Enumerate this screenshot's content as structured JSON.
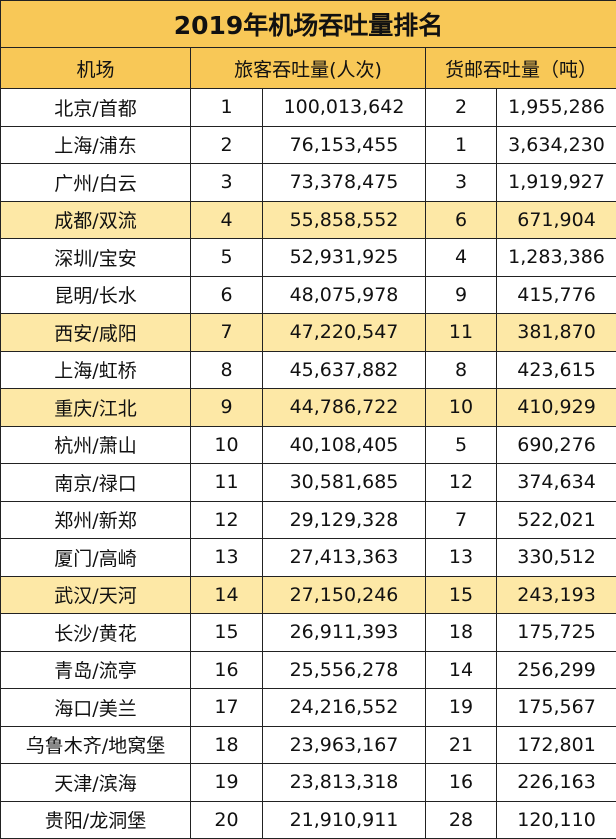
{
  "title": "2019年机场吞吐量排名",
  "headers": {
    "airport": "机场",
    "passenger": "旅客吞吐量(人次)",
    "cargo": "货邮吞吐量（吨）"
  },
  "rows": [
    {
      "airport": "北京/首都",
      "p_rank": "1",
      "p_value": "100,013,642",
      "c_rank": "2",
      "c_value": "1,955,286",
      "highlight": false
    },
    {
      "airport": "上海/浦东",
      "p_rank": "2",
      "p_value": "76,153,455",
      "c_rank": "1",
      "c_value": "3,634,230",
      "highlight": false
    },
    {
      "airport": "广州/白云",
      "p_rank": "3",
      "p_value": "73,378,475",
      "c_rank": "3",
      "c_value": "1,919,927",
      "highlight": false
    },
    {
      "airport": "成都/双流",
      "p_rank": "4",
      "p_value": "55,858,552",
      "c_rank": "6",
      "c_value": "671,904",
      "highlight": true
    },
    {
      "airport": "深圳/宝安",
      "p_rank": "5",
      "p_value": "52,931,925",
      "c_rank": "4",
      "c_value": "1,283,386",
      "highlight": false
    },
    {
      "airport": "昆明/长水",
      "p_rank": "6",
      "p_value": "48,075,978",
      "c_rank": "9",
      "c_value": "415,776",
      "highlight": false
    },
    {
      "airport": "西安/咸阳",
      "p_rank": "7",
      "p_value": "47,220,547",
      "c_rank": "11",
      "c_value": "381,870",
      "highlight": true
    },
    {
      "airport": "上海/虹桥",
      "p_rank": "8",
      "p_value": "45,637,882",
      "c_rank": "8",
      "c_value": "423,615",
      "highlight": false
    },
    {
      "airport": "重庆/江北",
      "p_rank": "9",
      "p_value": "44,786,722",
      "c_rank": "10",
      "c_value": "410,929",
      "highlight": true
    },
    {
      "airport": "杭州/萧山",
      "p_rank": "10",
      "p_value": "40,108,405",
      "c_rank": "5",
      "c_value": "690,276",
      "highlight": false
    },
    {
      "airport": "南京/禄口",
      "p_rank": "11",
      "p_value": "30,581,685",
      "c_rank": "12",
      "c_value": "374,634",
      "highlight": false
    },
    {
      "airport": "郑州/新郑",
      "p_rank": "12",
      "p_value": "29,129,328",
      "c_rank": "7",
      "c_value": "522,021",
      "highlight": false
    },
    {
      "airport": "厦门/高崎",
      "p_rank": "13",
      "p_value": "27,413,363",
      "c_rank": "13",
      "c_value": "330,512",
      "highlight": false
    },
    {
      "airport": "武汉/天河",
      "p_rank": "14",
      "p_value": "27,150,246",
      "c_rank": "15",
      "c_value": "243,193",
      "highlight": true
    },
    {
      "airport": "长沙/黄花",
      "p_rank": "15",
      "p_value": "26,911,393",
      "c_rank": "18",
      "c_value": "175,725",
      "highlight": false
    },
    {
      "airport": "青岛/流亭",
      "p_rank": "16",
      "p_value": "25,556,278",
      "c_rank": "14",
      "c_value": "256,299",
      "highlight": false
    },
    {
      "airport": "海口/美兰",
      "p_rank": "17",
      "p_value": "24,216,552",
      "c_rank": "19",
      "c_value": "175,567",
      "highlight": false
    },
    {
      "airport": "乌鲁木齐/地窝堡",
      "p_rank": "18",
      "p_value": "23,963,167",
      "c_rank": "21",
      "c_value": "172,801",
      "highlight": false
    },
    {
      "airport": "天津/滨海",
      "p_rank": "19",
      "p_value": "23,813,318",
      "c_rank": "16",
      "c_value": "226,163",
      "highlight": false
    },
    {
      "airport": "贵阳/龙洞堡",
      "p_rank": "20",
      "p_value": "21,910,911",
      "c_rank": "28",
      "c_value": "120,110",
      "highlight": false
    }
  ]
}
